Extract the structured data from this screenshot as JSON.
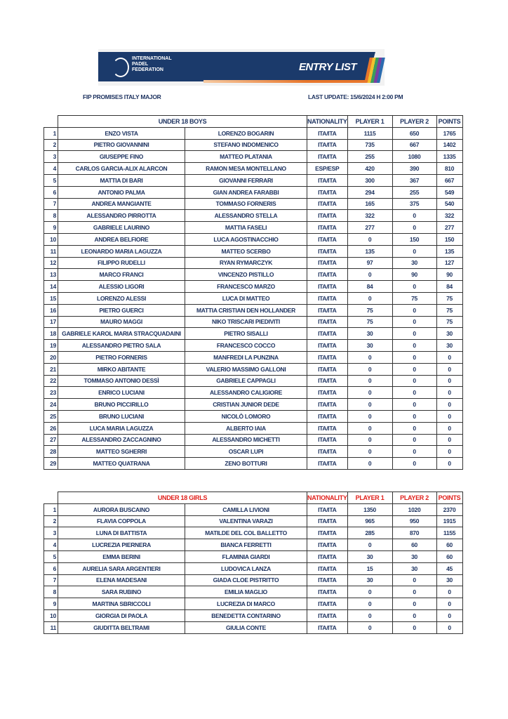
{
  "header": {
    "org_name": "INTERNATIONAL PADEL FEDERATION",
    "doc_title": "ENTRY LIST",
    "tournament": "FIP PROMISES ITALY MAJOR",
    "last_update": "LAST UPDATE: 15/6/2024 H 2:00 PM"
  },
  "colors": {
    "navy": "#1b3a6b",
    "text": "#1f3461",
    "girls_header": "#e0201b",
    "accent_orange": "#e8762b"
  },
  "boys": {
    "headers": {
      "category": "UNDER 18 BOYS",
      "nationality": "NATIONALITY",
      "player1": "PLAYER 1",
      "player2": "PLAYER 2",
      "points": "POINTS"
    },
    "rows": [
      [
        "1",
        "ENZO VISTA",
        "LORENZO BOGARIN",
        "ITA/ITA",
        "1115",
        "650",
        "1765"
      ],
      [
        "2",
        "PIETRO GIOVANNINI",
        "STEFANO INDOMENICO",
        "ITA/ITA",
        "735",
        "667",
        "1402"
      ],
      [
        "3",
        "GIUSEPPE FINO",
        "MATTEO PLATANIA",
        "ITA/ITA",
        "255",
        "1080",
        "1335"
      ],
      [
        "4",
        "CARLOS GARCIA-ALIX ALARCON",
        "RAMON MESA MONTELLANO",
        "ESP/ESP",
        "420",
        "390",
        "810"
      ],
      [
        "5",
        "MATTIA DI BARI",
        "GIOVANNI FERRARI",
        "ITA/ITA",
        "300",
        "367",
        "667"
      ],
      [
        "6",
        "ANTONIO PALMA",
        "GIAN ANDREA FARABBI",
        "ITA/ITA",
        "294",
        "255",
        "549"
      ],
      [
        "7",
        "ANDREA MANGIANTE",
        "TOMMASO FORNERIS",
        "ITA/ITA",
        "165",
        "375",
        "540"
      ],
      [
        "8",
        "ALESSANDRO PIRROTTA",
        "ALESSANDRO STELLA",
        "ITA/ITA",
        "322",
        "0",
        "322"
      ],
      [
        "9",
        "GABRIELE LAURINO",
        "MATTIA FASELI",
        "ITA/ITA",
        "277",
        "0",
        "277"
      ],
      [
        "10",
        "ANDREA BELFIORE",
        "LUCA AGOSTINACCHIO",
        "ITA/ITA",
        "0",
        "150",
        "150"
      ],
      [
        "11",
        "LEONARDO MARIA LAGUZZA",
        "MATTEO SCERBO",
        "ITA/ITA",
        "135",
        "0",
        "135"
      ],
      [
        "12",
        "FILIPPO RUDELLI",
        "RYAN RYMARCZYK",
        "ITA/ITA",
        "97",
        "30",
        "127"
      ],
      [
        "13",
        "MARCO FRANCI",
        "VINCENZO PISTILLO",
        "ITA/ITA",
        "0",
        "90",
        "90"
      ],
      [
        "14",
        "ALESSIO LIGORI",
        "FRANCESCO MARZO",
        "ITA/ITA",
        "84",
        "0",
        "84"
      ],
      [
        "15",
        "LORENZO ALESSI",
        "LUCA DI MATTEO",
        "ITA/ITA",
        "0",
        "75",
        "75"
      ],
      [
        "16",
        "PIETRO GUERCI",
        "MATTIA CRISTIAN DEN HOLLANDER",
        "ITA/ITA",
        "75",
        "0",
        "75"
      ],
      [
        "17",
        "MAURO MAGGI",
        "NIKO TRISCARI PIEDIVITI",
        "ITA/ITA",
        "75",
        "0",
        "75"
      ],
      [
        "18",
        "GABRIELE KAROL MARIA STRACQUADAINI",
        "PIETRO SISALLI",
        "ITA/ITA",
        "30",
        "0",
        "30"
      ],
      [
        "19",
        "ALESSANDRO PIETRO SALA",
        "FRANCESCO COCCO",
        "ITA/ITA",
        "30",
        "0",
        "30"
      ],
      [
        "20",
        "PIETRO FORNERIS",
        "MANFREDI LA PUNZINA",
        "ITA/ITA",
        "0",
        "0",
        "0"
      ],
      [
        "21",
        "MIRKO ABITANTE",
        "VALERIO MASSIMO GALLONI",
        "ITA/ITA",
        "0",
        "0",
        "0"
      ],
      [
        "22",
        "TOMMASO ANTONIO DESSÌ",
        "GABRIELE CAPPAGLI",
        "ITA/ITA",
        "0",
        "0",
        "0"
      ],
      [
        "23",
        "ENRICO LUCIANI",
        "ALESSANDRO CALIGIORE",
        "ITA/ITA",
        "0",
        "0",
        "0"
      ],
      [
        "24",
        "BRUNO PICCIRILLO",
        "CRISTIAN JUNIOR DEDE",
        "ITA/ITA",
        "0",
        "0",
        "0"
      ],
      [
        "25",
        "BRUNO LUCIANI",
        "NICOLÒ LOMORO",
        "ITA/ITA",
        "0",
        "0",
        "0"
      ],
      [
        "26",
        "LUCA MARIA LAGUZZA",
        "ALBERTO IAIA",
        "ITA/ITA",
        "0",
        "0",
        "0"
      ],
      [
        "27",
        "ALESSANDRO ZACCAGNINO",
        "ALESSANDRO MICHETTI",
        "ITA/ITA",
        "0",
        "0",
        "0"
      ],
      [
        "28",
        "MATTEO SGHERRI",
        "OSCAR LUPI",
        "ITA/ITA",
        "0",
        "0",
        "0"
      ],
      [
        "29",
        "MATTEO QUATRANA",
        "ZENO BOTTURI",
        "ITA/ITA",
        "0",
        "0",
        "0"
      ]
    ]
  },
  "girls": {
    "headers": {
      "category": "UNDER 18 GIRLS",
      "nationality": "NATIONALITY",
      "player1": "PLAYER 1",
      "player2": "PLAYER 2",
      "points": "POINTS"
    },
    "rows": [
      [
        "1",
        "AURORA BUSCAINO",
        "CAMILLA LIVIONI",
        "ITA/ITA",
        "1350",
        "1020",
        "2370"
      ],
      [
        "2",
        "FLAVIA COPPOLA",
        "VALENTINA VARAZI",
        "ITA/ITA",
        "965",
        "950",
        "1915"
      ],
      [
        "3",
        "LUNA DI BATTISTA",
        "MATILDE DEL COL BALLETTO",
        "ITA/ITA",
        "285",
        "870",
        "1155"
      ],
      [
        "4",
        "LUCREZIA PIERNERA",
        "BIANCA FERRETTI",
        "ITA/ITA",
        "0",
        "60",
        "60"
      ],
      [
        "5",
        "EMMA BERINI",
        "FLAMINIA GIARDI",
        "ITA/ITA",
        "30",
        "30",
        "60"
      ],
      [
        "6",
        "AURELIA SARA ARGENTIERI",
        "LUDOVICA LANZA",
        "ITA/ITA",
        "15",
        "30",
        "45"
      ],
      [
        "7",
        "ELENA MADESANI",
        "GIADA CLOE PISTRITTO",
        "ITA/ITA",
        "30",
        "0",
        "30"
      ],
      [
        "8",
        "SARA RUBINO",
        "EMILIA MAGLIO",
        "ITA/ITA",
        "0",
        "0",
        "0"
      ],
      [
        "9",
        "MARTINA SBRICCOLI",
        "LUCREZIA DI MARCO",
        "ITA/ITA",
        "0",
        "0",
        "0"
      ],
      [
        "10",
        "GIORGIA DI PAOLA",
        "BENEDETTA CONTARINO",
        "ITA/ITA",
        "0",
        "0",
        "0"
      ],
      [
        "11",
        "GIUDITTA BELTRAMI",
        "GIULIA CONTE",
        "ITA/ITA",
        "0",
        "0",
        "0"
      ]
    ]
  }
}
